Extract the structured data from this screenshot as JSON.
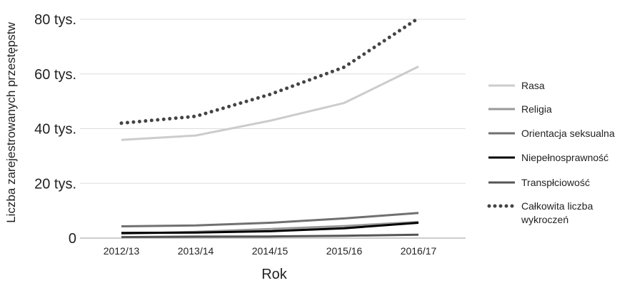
{
  "chart_data": {
    "type": "line",
    "xlabel": "Rok",
    "ylabel": "Liczba zarejestrowanych przestępstw",
    "categories": [
      "2012/13",
      "2013/14",
      "2014/15",
      "2015/16",
      "2016/17"
    ],
    "ylim": [
      0,
      80000
    ],
    "yticks": [
      {
        "value": 0,
        "label": "0"
      },
      {
        "value": 20000,
        "label": "20 tys."
      },
      {
        "value": 40000,
        "label": "40 tys."
      },
      {
        "value": 60000,
        "label": "60 tys."
      },
      {
        "value": 80000,
        "label": "80 tys."
      }
    ],
    "grid": "horizontal",
    "legend_position": "right",
    "series": [
      {
        "name": "Rasa",
        "color": "#cccccc",
        "style": "solid",
        "values": [
          35900,
          37500,
          42900,
          49400,
          62700
        ]
      },
      {
        "name": "Religia",
        "color": "#999999",
        "style": "solid",
        "values": [
          1600,
          2300,
          3300,
          4400,
          5900
        ]
      },
      {
        "name": "Orientacja seksualna",
        "color": "#707070",
        "style": "solid",
        "values": [
          4300,
          4600,
          5600,
          7200,
          9200
        ]
      },
      {
        "name": "Niepełnosprawność",
        "color": "#000000",
        "style": "solid",
        "values": [
          1900,
          2000,
          2500,
          3600,
          5600
        ]
      },
      {
        "name": "Transpłciowość",
        "color": "#555555",
        "style": "solid",
        "values": [
          360,
          550,
          600,
          860,
          1250
        ]
      },
      {
        "name": "Całkowita liczba wykroczeń",
        "label_lines": [
          "Całkowita liczba",
          "wykroczeń"
        ],
        "color": "#444444",
        "style": "dotted",
        "values": [
          42000,
          44500,
          52500,
          62500,
          80400
        ]
      }
    ]
  }
}
